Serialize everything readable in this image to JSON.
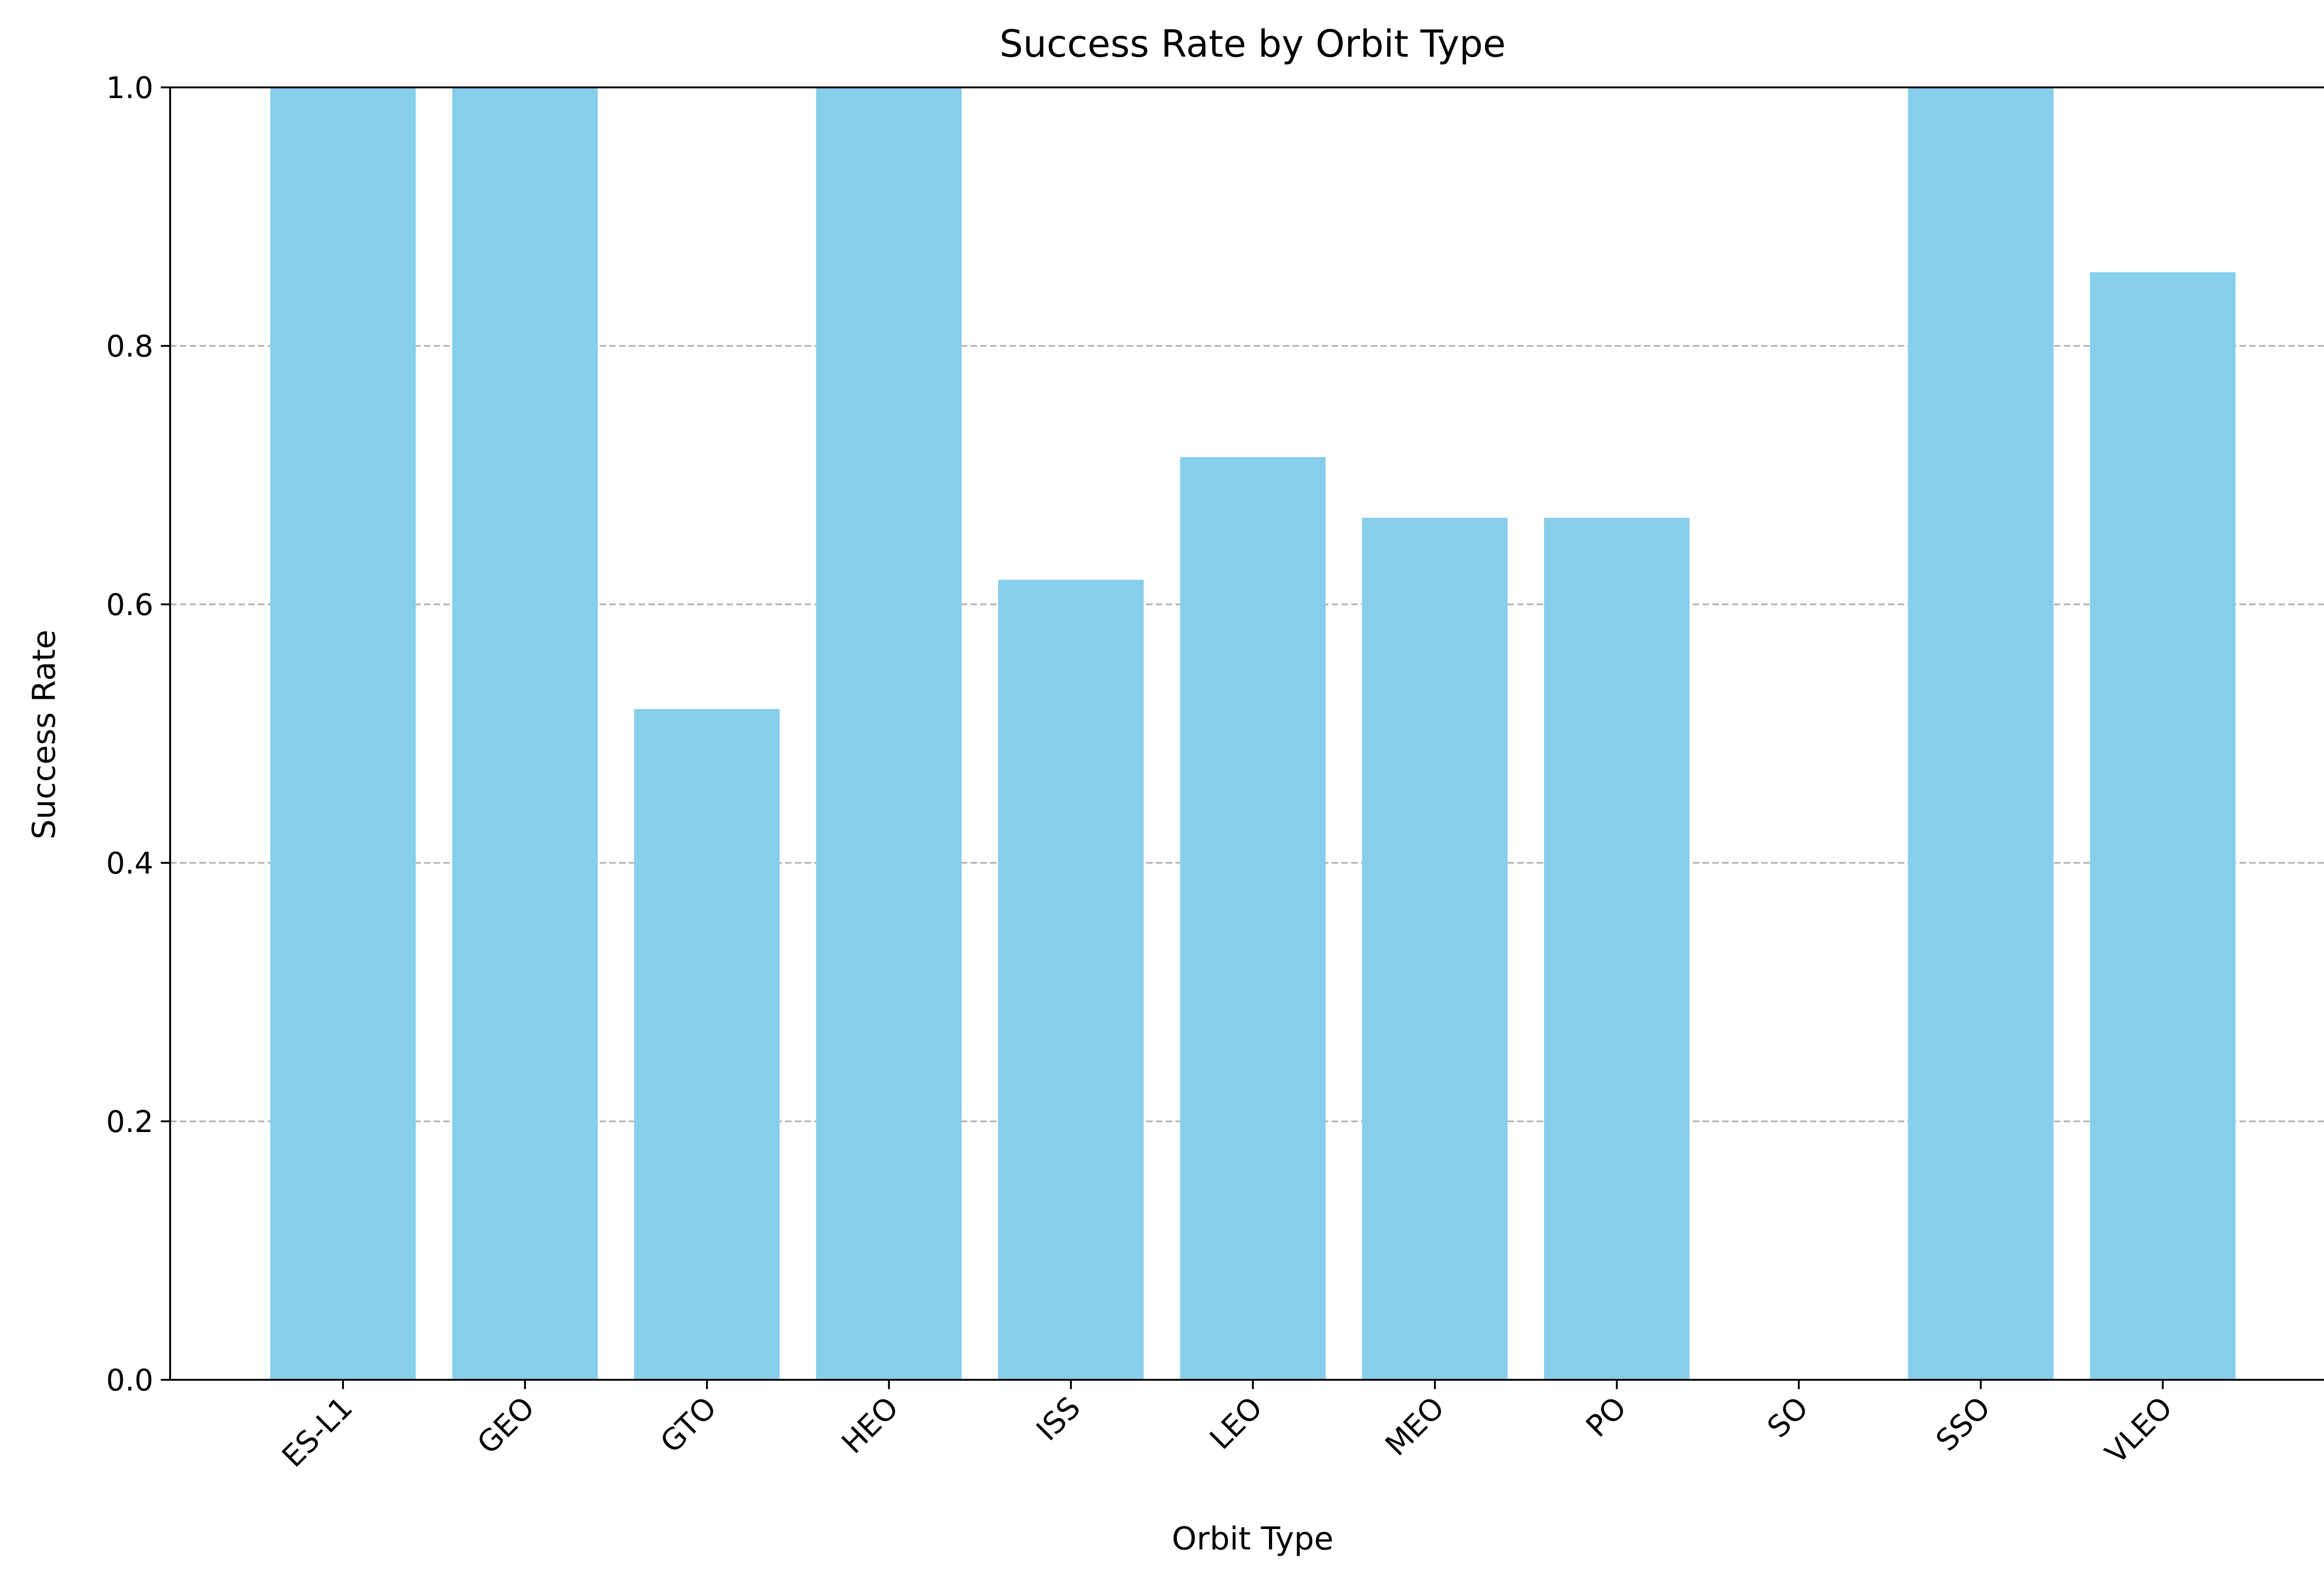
{
  "chart_data": {
    "type": "bar",
    "title": "Success Rate by Orbit Type",
    "xlabel": "Orbit Type",
    "ylabel": "Success Rate",
    "categories": [
      "ES-L1",
      "GEO",
      "GTO",
      "HEO",
      "ISS",
      "LEO",
      "MEO",
      "PO",
      "SO",
      "SSO",
      "VLEO"
    ],
    "values": [
      1.0,
      1.0,
      0.519,
      1.0,
      0.619,
      0.714,
      0.667,
      0.667,
      0.0,
      1.0,
      0.857
    ],
    "ylim": [
      0,
      1.0
    ],
    "yticks": [
      0.0,
      0.2,
      0.4,
      0.6,
      0.8,
      1.0
    ],
    "ytick_labels": [
      "0.0",
      "0.2",
      "0.4",
      "0.6",
      "0.8",
      "1.0"
    ],
    "grid": "y-dashed",
    "legend": "none",
    "bar_color": "#87ceeb",
    "grid_color": "#b0b0b0",
    "axis_color": "#000000"
  }
}
